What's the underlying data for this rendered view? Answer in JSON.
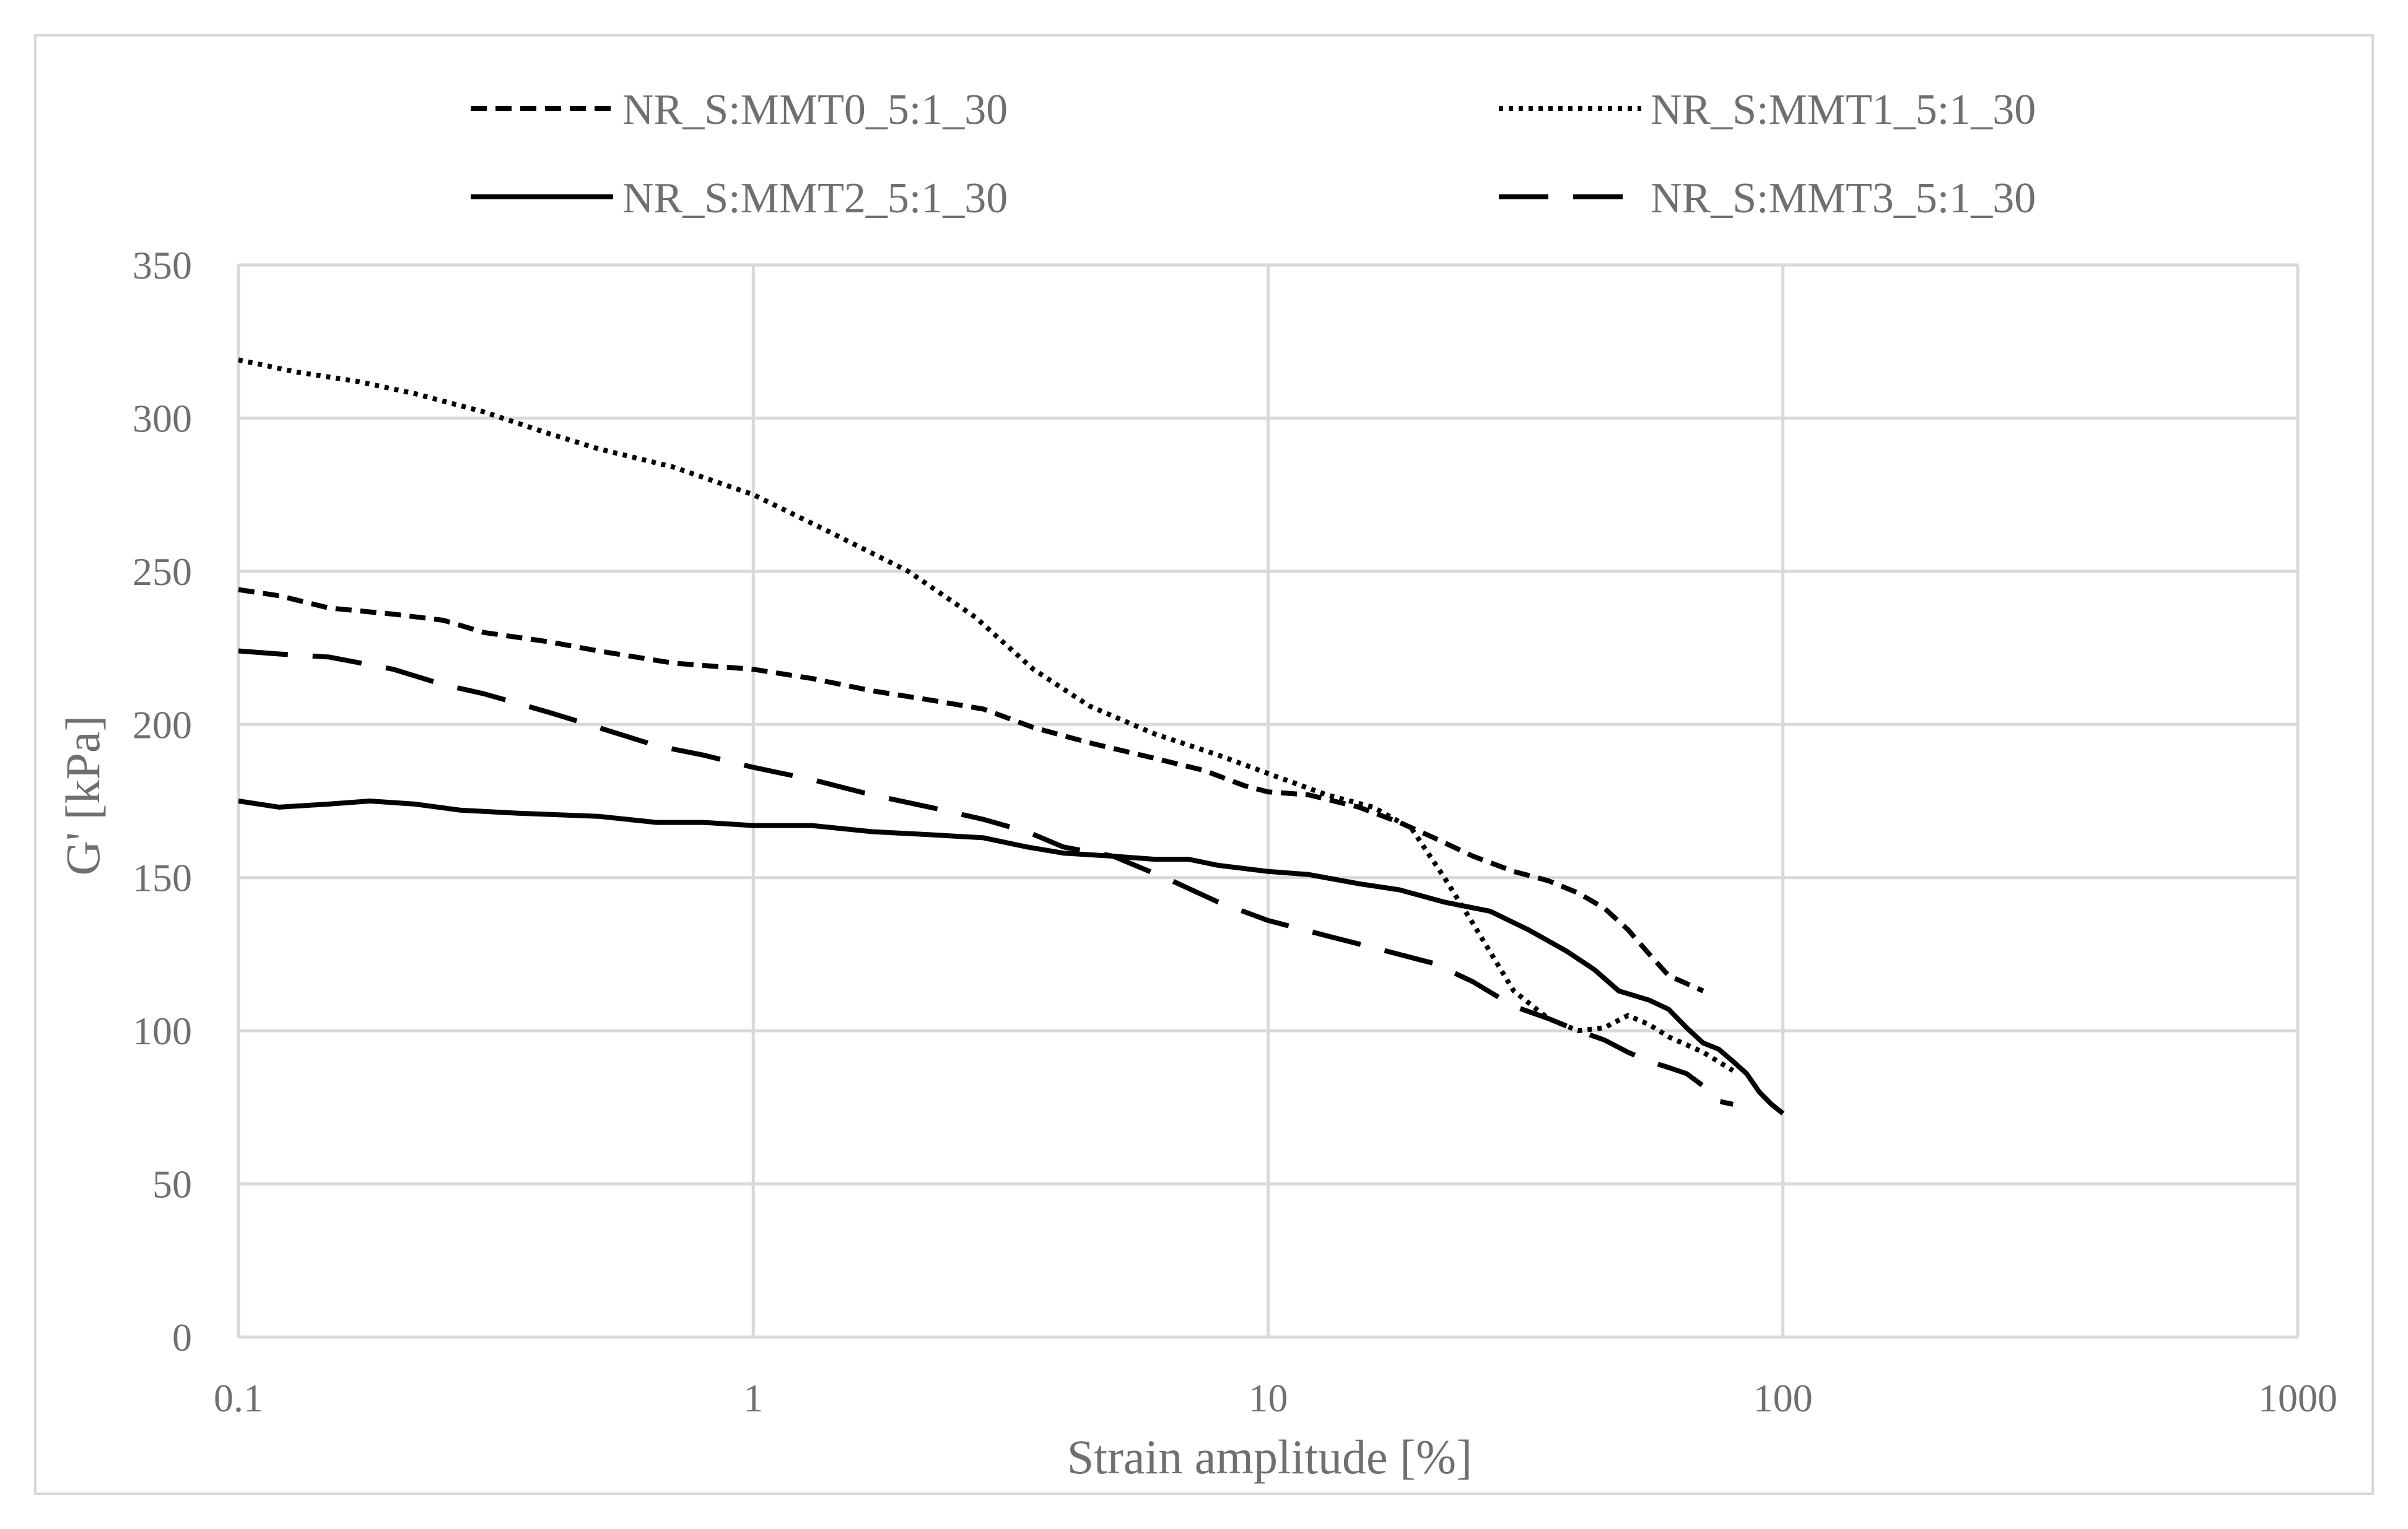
{
  "chart_data": {
    "type": "line",
    "title": "",
    "xlabel": "Strain amplitude [%]",
    "ylabel": "G' [kPa]",
    "xscale": "log",
    "xlim": [
      0.1,
      1000
    ],
    "ylim": [
      0,
      350
    ],
    "x_ticks": [
      0.1,
      1,
      10,
      100,
      1000
    ],
    "x_tick_labels": [
      "0.1",
      "1",
      "10",
      "100",
      "1000"
    ],
    "y_ticks": [
      0,
      50,
      100,
      150,
      200,
      250,
      300,
      350
    ],
    "y_tick_labels": [
      "0",
      "50",
      "100",
      "150",
      "200",
      "250",
      "300",
      "350"
    ],
    "grid": true,
    "legend_position": "top",
    "series": [
      {
        "name": "NR_S:MMT0_5:1_30",
        "dash": "short-dash",
        "x": [
          0.1,
          0.12,
          0.15,
          0.2,
          0.25,
          0.3,
          0.4,
          0.5,
          0.7,
          1,
          1.3,
          1.7,
          2.2,
          2.8,
          3.5,
          4.5,
          6,
          7.5,
          9,
          10,
          12,
          15,
          18,
          21,
          25,
          30,
          35,
          40,
          45,
          50,
          55,
          60,
          70
        ],
        "values": [
          244,
          242,
          238,
          236,
          234,
          230,
          227,
          224,
          220,
          218,
          215,
          211,
          208,
          205,
          199,
          194,
          189,
          185,
          180,
          178,
          177,
          173,
          168,
          163,
          157,
          152,
          149,
          145,
          140,
          133,
          125,
          118,
          113
        ]
      },
      {
        "name": "NR_S:MMT1_5:1_30",
        "dash": "dotted",
        "x": [
          0.1,
          0.13,
          0.17,
          0.22,
          0.3,
          0.4,
          0.5,
          0.7,
          1,
          1.4,
          2,
          2.7,
          3.5,
          4.5,
          6,
          8,
          10,
          13,
          16,
          19,
          22,
          25,
          30,
          35,
          40,
          45,
          50,
          55,
          60,
          70,
          80
        ],
        "values": [
          319,
          315,
          312,
          308,
          302,
          295,
          290,
          284,
          275,
          263,
          250,
          235,
          218,
          206,
          197,
          190,
          184,
          177,
          173,
          166,
          150,
          135,
          113,
          104,
          100,
          101,
          105,
          102,
          98,
          93,
          87
        ]
      },
      {
        "name": "NR_S:MMT2_5:1_30",
        "dash": "solid",
        "x": [
          0.1,
          0.12,
          0.15,
          0.18,
          0.22,
          0.27,
          0.35,
          0.5,
          0.65,
          0.8,
          1,
          1.3,
          1.7,
          2.2,
          2.8,
          3.4,
          4,
          5,
          6,
          7,
          8,
          10,
          12,
          15,
          18,
          22,
          27,
          32,
          38,
          43,
          48,
          55,
          60,
          65,
          70,
          75,
          80,
          85,
          90,
          95,
          100
        ],
        "values": [
          175,
          173,
          174,
          175,
          174,
          172,
          171,
          170,
          168,
          168,
          167,
          167,
          165,
          164,
          163,
          160,
          158,
          157,
          156,
          156,
          154,
          152,
          151,
          148,
          146,
          142,
          139,
          133,
          126,
          120,
          113,
          110,
          107,
          101,
          96,
          94,
          90,
          86,
          80,
          76,
          73
        ]
      },
      {
        "name": "NR_S:MMT3_5:1_30",
        "dash": "long-dash",
        "x": [
          0.1,
          0.12,
          0.15,
          0.2,
          0.25,
          0.3,
          0.4,
          0.5,
          0.65,
          0.8,
          1,
          1.3,
          1.7,
          2.2,
          2.8,
          3.4,
          4,
          5,
          6.5,
          8,
          10,
          13,
          17,
          21,
          25,
          30,
          35,
          40,
          45,
          50,
          55,
          60,
          65,
          70,
          75,
          80
        ],
        "values": [
          224,
          223,
          222,
          218,
          213,
          210,
          204,
          199,
          193,
          190,
          186,
          182,
          177,
          173,
          169,
          165,
          160,
          157,
          149,
          142,
          136,
          131,
          126,
          122,
          116,
          108,
          104,
          100,
          97,
          93,
          90,
          88,
          86,
          82,
          77,
          76
        ]
      }
    ]
  }
}
